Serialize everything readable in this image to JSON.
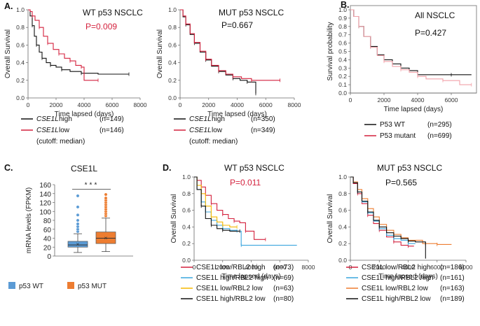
{
  "colors": {
    "black": "#111111",
    "red": "#d4213d",
    "pink": "#f2a0a8",
    "blue": "#5b9bd5",
    "orange": "#ed7d31",
    "gold": "#f5b800",
    "cyan": "#3aa5dd"
  },
  "chart_data": [
    {
      "id": "A1",
      "panel_label": "A.",
      "type": "line",
      "title": "WT p53 NSCLC",
      "pvalue": "P=0.009",
      "pvalue_color": "red",
      "xlabel": "Time lapsed (days)",
      "ylabel": "Overall Survival",
      "xlim": [
        0,
        8000
      ],
      "ylim": [
        0,
        1
      ],
      "xticks": [
        "0",
        "2000",
        "4000",
        "6000",
        "8000"
      ],
      "yticks": [
        "0.0",
        "0.2",
        "0.4",
        "0.6",
        "0.8",
        "1.0"
      ],
      "series": [
        {
          "color": "black",
          "x": [
            0,
            150,
            300,
            450,
            600,
            800,
            1000,
            1300,
            1600,
            2000,
            2400,
            3000,
            3800,
            5000,
            7200
          ],
          "y": [
            1,
            0.93,
            0.82,
            0.7,
            0.6,
            0.52,
            0.45,
            0.4,
            0.37,
            0.35,
            0.32,
            0.3,
            0.28,
            0.27,
            0.27
          ]
        },
        {
          "color": "red",
          "x": [
            0,
            150,
            300,
            500,
            800,
            1100,
            1400,
            1800,
            2200,
            2600,
            3000,
            3400,
            3800,
            4000,
            5000
          ],
          "y": [
            1,
            0.98,
            0.93,
            0.88,
            0.8,
            0.7,
            0.62,
            0.55,
            0.5,
            0.45,
            0.42,
            0.37,
            0.35,
            0.2,
            0.2
          ]
        }
      ],
      "legend": [
        {
          "color": "black",
          "gene": "CSE1L",
          "label": "high",
          "n": "(n=149)"
        },
        {
          "color": "red",
          "gene": "CSE1L",
          "label": "low",
          "n": "(n=146)"
        }
      ],
      "note": "(cutoff: median)"
    },
    {
      "id": "A2",
      "panel_label": "",
      "type": "line",
      "title": "MUT p53 NSCLC",
      "pvalue": "P=0.667",
      "pvalue_color": "black",
      "xlabel": "Time lapsed (days)",
      "ylabel": "Overall Survival",
      "xlim": [
        0,
        8000
      ],
      "ylim": [
        0,
        1
      ],
      "xticks": [
        "0",
        "2000",
        "4000",
        "6000",
        "8000"
      ],
      "yticks": [
        "0.0",
        "0.2",
        "0.4",
        "0.6",
        "0.8",
        "1.0"
      ],
      "series": [
        {
          "color": "black",
          "x": [
            0,
            200,
            400,
            700,
            1000,
            1400,
            1800,
            2200,
            2700,
            3200,
            3700,
            4200,
            4700,
            5300,
            5300
          ],
          "y": [
            1,
            0.92,
            0.83,
            0.72,
            0.62,
            0.52,
            0.43,
            0.36,
            0.3,
            0.26,
            0.22,
            0.2,
            0.18,
            0.18,
            0.05
          ]
        },
        {
          "color": "red",
          "x": [
            0,
            200,
            400,
            700,
            1000,
            1400,
            1800,
            2200,
            2700,
            3200,
            3700,
            4300,
            5000,
            5800,
            7000
          ],
          "y": [
            1,
            0.93,
            0.84,
            0.73,
            0.63,
            0.53,
            0.44,
            0.37,
            0.31,
            0.27,
            0.24,
            0.22,
            0.2,
            0.2,
            0.2
          ]
        }
      ],
      "legend": [
        {
          "color": "black",
          "gene": "CSE1L",
          "label": "high",
          "n": "(n=350)"
        },
        {
          "color": "red",
          "gene": "CSE1L",
          "label": "low",
          "n": "(n=349)"
        }
      ],
      "note": "(cutoff: median)"
    },
    {
      "id": "B",
      "panel_label": "B.",
      "type": "line",
      "title": "All NSCLC",
      "pvalue": "P=0.427",
      "pvalue_color": "black",
      "xlabel": "Time lapsed (days)",
      "ylabel": "Survival probability",
      "xlim": [
        0,
        7500
      ],
      "ylim": [
        0,
        1
      ],
      "xticks": [
        "0",
        "2000",
        "4000",
        "6000"
      ],
      "yticks": [
        "0.0",
        "0.1",
        "0.2",
        "0.3",
        "0.4",
        "0.5",
        "0.6",
        "0.7",
        "0.8",
        "0.9",
        "1.0"
      ],
      "series": [
        {
          "color": "black",
          "x": [
            0,
            200,
            500,
            800,
            1200,
            1600,
            2000,
            2500,
            3000,
            3500,
            4000,
            5000,
            6000,
            7200
          ],
          "y": [
            1,
            0.92,
            0.8,
            0.68,
            0.56,
            0.46,
            0.4,
            0.35,
            0.3,
            0.27,
            0.22,
            0.22,
            0.22,
            0.22
          ]
        },
        {
          "color": "pink",
          "x": [
            0,
            200,
            500,
            800,
            1200,
            1600,
            2000,
            2500,
            3000,
            3500,
            4000,
            4500,
            5500,
            6500,
            7200
          ],
          "y": [
            1,
            0.92,
            0.8,
            0.68,
            0.55,
            0.45,
            0.38,
            0.32,
            0.28,
            0.25,
            0.2,
            0.17,
            0.15,
            0.1,
            0.1
          ]
        }
      ],
      "legend": [
        {
          "color": "black",
          "gene": "",
          "label": "P53 WT",
          "n": "(n=295)"
        },
        {
          "color": "red",
          "gene": "",
          "label": "P53 mutant",
          "n": "(n=699)"
        }
      ]
    },
    {
      "id": "C",
      "panel_label": "C.",
      "type": "box",
      "title": "CSE1L",
      "ylabel": "mRNA levels (FPKM)",
      "ylim": [
        0,
        160
      ],
      "yticks": [
        "0",
        "20",
        "40",
        "60",
        "80",
        "100",
        "120",
        "140",
        "160"
      ],
      "significance": "***",
      "boxes": [
        {
          "name": "p53 WT",
          "color": "blue",
          "q1": 20,
          "median": 25,
          "q3": 33,
          "whisker_low": 8,
          "whisker_high": 50,
          "outliers": [
            55,
            60,
            66,
            72,
            80,
            92,
            110,
            135
          ]
        },
        {
          "name": "p53 MUT",
          "color": "orange",
          "q1": 28,
          "median": 40,
          "q3": 54,
          "whisker_low": 10,
          "whisker_high": 85,
          "outliers": [
            90,
            95,
            100,
            105,
            110,
            115,
            120,
            125,
            130,
            138
          ]
        }
      ]
    },
    {
      "id": "D1",
      "panel_label": "D.",
      "type": "line",
      "title": "WT p53 NSCLC",
      "pvalue": "P=0.011",
      "pvalue_color": "red",
      "xlabel": "Time lapsed (days)",
      "ylabel": "Overall Survival",
      "xlim": [
        0,
        8000
      ],
      "ylim": [
        0,
        1
      ],
      "xticks": [
        "0",
        "2000",
        "4000",
        "6000",
        "8000"
      ],
      "yticks": [
        "0.0",
        "0.2",
        "0.4",
        "0.6",
        "0.8",
        "1.0"
      ],
      "series": [
        {
          "color": "red",
          "x": [
            0,
            200,
            500,
            800,
            1200,
            1600,
            2000,
            2400,
            2800,
            3200,
            3600,
            4200,
            5000
          ],
          "y": [
            1,
            0.96,
            0.88,
            0.78,
            0.68,
            0.6,
            0.55,
            0.5,
            0.47,
            0.45,
            0.35,
            0.25,
            0.25
          ]
        },
        {
          "color": "cyan",
          "x": [
            0,
            200,
            500,
            800,
            1200,
            1600,
            2000,
            2500,
            3000,
            3300,
            3300,
            7200
          ],
          "y": [
            1,
            0.85,
            0.7,
            0.58,
            0.48,
            0.42,
            0.38,
            0.36,
            0.35,
            0.35,
            0.18,
            0.18
          ]
        },
        {
          "color": "gold",
          "x": [
            0,
            200,
            500,
            800,
            1200,
            1600,
            2000,
            2500,
            3000
          ],
          "y": [
            1,
            0.9,
            0.8,
            0.65,
            0.52,
            0.46,
            0.42,
            0.4,
            0.4
          ]
        },
        {
          "color": "black",
          "x": [
            0,
            200,
            500,
            800,
            1200,
            1600,
            2000,
            2500,
            3200
          ],
          "y": [
            1,
            0.85,
            0.65,
            0.5,
            0.42,
            0.38,
            0.36,
            0.35,
            0.35
          ]
        }
      ],
      "legend": [
        {
          "color": "red",
          "label": "CSE1L low/RBL2 high",
          "n": "(n=73)"
        },
        {
          "color": "cyan",
          "label": "CSE1L high/RBL2 high",
          "n": "(n=69)"
        },
        {
          "color": "gold",
          "label": "CSE1L low/RBL2 low",
          "n": "(n=63)"
        },
        {
          "color": "black",
          "label": "CSE1L high/RBL2 low",
          "n": "(n=80)"
        }
      ]
    },
    {
      "id": "D2",
      "panel_label": "",
      "type": "line",
      "title": "MUT p53 NSCLC",
      "pvalue": "P=0.565",
      "pvalue_color": "black",
      "xlabel": "Time lapsed (days)",
      "ylabel": "Overall Survival",
      "xlim": [
        0,
        8000
      ],
      "ylim": [
        0,
        1
      ],
      "xticks": [
        "0",
        "2000",
        "4000",
        "6000",
        "8000"
      ],
      "yticks": [
        "0.0",
        "0.2",
        "0.4",
        "0.6",
        "0.8",
        "1.0"
      ],
      "series": [
        {
          "color": "red",
          "x": [
            0,
            200,
            500,
            800,
            1200,
            1600,
            2000,
            2500,
            3000,
            3500,
            4000,
            4400
          ],
          "y": [
            1,
            0.92,
            0.8,
            0.68,
            0.54,
            0.44,
            0.36,
            0.28,
            0.22,
            0.18,
            0.17,
            0.17
          ]
        },
        {
          "color": "cyan",
          "x": [
            0,
            200,
            500,
            800,
            1200,
            1600,
            2000,
            2500,
            3000,
            3500,
            4000,
            4500
          ],
          "y": [
            1,
            0.93,
            0.82,
            0.7,
            0.57,
            0.47,
            0.38,
            0.3,
            0.26,
            0.24,
            0.2,
            0.2
          ]
        },
        {
          "color": "orange",
          "x": [
            0,
            200,
            500,
            800,
            1200,
            1600,
            2000,
            2500,
            3000,
            3500,
            4000,
            5000,
            6000,
            7000
          ],
          "y": [
            1,
            0.94,
            0.85,
            0.74,
            0.62,
            0.52,
            0.43,
            0.36,
            0.31,
            0.27,
            0.24,
            0.2,
            0.19,
            0.19
          ]
        },
        {
          "color": "black",
          "x": [
            0,
            200,
            500,
            800,
            1200,
            1600,
            2000,
            2500,
            3000,
            3500,
            4000,
            4500,
            5200,
            5200
          ],
          "y": [
            1,
            0.93,
            0.82,
            0.71,
            0.58,
            0.48,
            0.4,
            0.33,
            0.29,
            0.26,
            0.23,
            0.22,
            0.2,
            0.02
          ]
        }
      ],
      "legend": [
        {
          "color": "red",
          "label": "CSE1L low/RBL2 high",
          "n": "(n=186)"
        },
        {
          "color": "cyan",
          "label": "CSE1L high/RBL2 high",
          "n": "(n=161)"
        },
        {
          "color": "orange",
          "label": "CSE1L low/RBL2 low",
          "n": "(n=163)"
        },
        {
          "color": "black",
          "label": "CSE1L high/RBL2 low",
          "n": "(n=189)"
        }
      ]
    }
  ]
}
